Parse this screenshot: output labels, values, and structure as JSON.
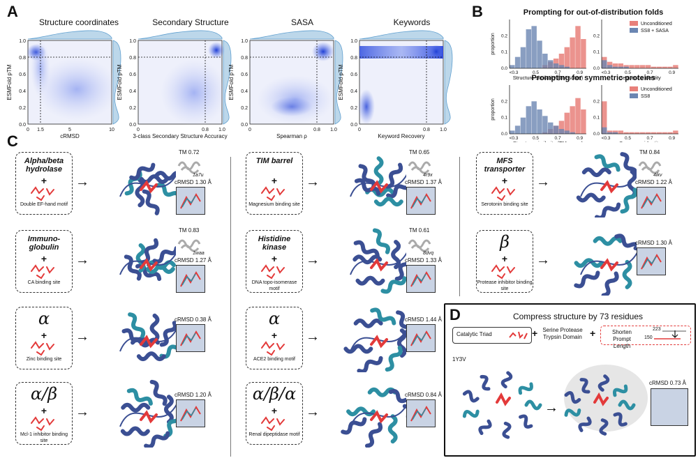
{
  "colors": {
    "blue_dark": "#3b4f93",
    "teal": "#2d8fa3",
    "red": "#e33a3a",
    "density": "#4a63d8",
    "salmon": "#e8807a",
    "slate": "#6b86b2"
  },
  "panelA": {
    "letter": "A",
    "subplots": [
      {
        "title": "Structure coordinates",
        "xlabel": "cRMSD",
        "ylabel": "ESMFold pTM",
        "xticks": [
          "0",
          "1.5",
          "5",
          "10"
        ],
        "yticks": [
          "0.0",
          "0.2",
          "0.4",
          "0.6",
          "0.8",
          "1.0"
        ]
      },
      {
        "title": "Secondary Structure",
        "xlabel": "3-class Secondary Structure Accuracy",
        "ylabel": "ESMFold pTM",
        "xticks": [
          "0",
          "0.8",
          "1.0"
        ],
        "yticks": [
          "0.0",
          "0.2",
          "0.4",
          "0.6",
          "0.8",
          "1.0"
        ]
      },
      {
        "title": "SASA",
        "xlabel": "Spearman ρ",
        "ylabel": "ESMFold pTM",
        "xticks": [
          "0",
          "0.8",
          "1.0"
        ],
        "yticks": [
          "0.0",
          "0.2",
          "0.4",
          "0.6",
          "0.8",
          "1.0"
        ]
      },
      {
        "title": "Keywords",
        "xlabel": "Keyword Recovery",
        "ylabel": "ESMFold pTM",
        "xticks": [
          "0",
          "0.8",
          "1.0"
        ],
        "yticks": [
          "0.0",
          "0.2",
          "0.4",
          "0.6",
          "0.8",
          "1.0"
        ]
      }
    ]
  },
  "panelB": {
    "letter": "B",
    "top_title": "Prompting for out-of-distribution folds",
    "bottom_title": "Prompting for symmetric proteins",
    "ylabel": "proportion",
    "xlabel_left": "Structure similarity (TM-score)",
    "xlabel_right": "Sequence identity",
    "xticks_left": [
      "<0.3",
      "0.5",
      "0.7",
      "0.9"
    ],
    "xticks_right": [
      "<0.3",
      "0.5",
      "0.7",
      "0.9"
    ],
    "yticks": [
      "0.0",
      "0.1",
      "0.2"
    ],
    "legend_top": [
      "Unconditioned",
      "SS8 + SASA"
    ],
    "legend_bottom": [
      "Unconditioned",
      "SS8"
    ]
  },
  "chart_data": [
    {
      "type": "bar",
      "title": "Prompting for out-of-distribution folds",
      "xlabel": "Structure similarity (TM-score)",
      "ylabel": "proportion",
      "ylim": [
        0,
        0.3
      ],
      "x": [
        0.3,
        0.35,
        0.4,
        0.45,
        0.5,
        0.55,
        0.6,
        0.65,
        0.7,
        0.75,
        0.8,
        0.85,
        0.9,
        0.95
      ],
      "series": [
        {
          "name": "Unconditioned",
          "values": [
            0,
            0,
            0,
            0,
            0,
            0,
            0.02,
            0.04,
            0.06,
            0.09,
            0.13,
            0.19,
            0.26,
            0.18
          ]
        },
        {
          "name": "SS8 + SASA",
          "values": [
            0.02,
            0.07,
            0.13,
            0.24,
            0.26,
            0.17,
            0.09,
            0.05,
            0.03,
            0.02,
            0.01,
            0,
            0,
            0
          ]
        }
      ]
    },
    {
      "type": "bar",
      "title": "",
      "xlabel": "Sequence identity",
      "ylabel": "",
      "ylim": [
        0,
        0.3
      ],
      "x": [
        0.3,
        0.35,
        0.4,
        0.45,
        0.5,
        0.55,
        0.6,
        0.65,
        0.7,
        0.75,
        0.8,
        0.85,
        0.9,
        0.95
      ],
      "series": [
        {
          "name": "Unconditioned",
          "values": [
            0.07,
            0.04,
            0.03,
            0.03,
            0.02,
            0.02,
            0.02,
            0.02,
            0.02,
            0.01,
            0.01,
            0.01,
            0.01,
            0.02
          ]
        },
        {
          "name": "SS8 + SASA",
          "values": [
            0.05,
            0.02,
            0.01,
            0.01,
            0.01,
            0,
            0,
            0,
            0,
            0,
            0,
            0,
            0,
            0
          ]
        }
      ]
    },
    {
      "type": "bar",
      "title": "Prompting for symmetric proteins",
      "xlabel": "Structure similarity (TM-score)",
      "ylabel": "proportion",
      "ylim": [
        0,
        0.3
      ],
      "x": [
        0.3,
        0.35,
        0.4,
        0.45,
        0.5,
        0.55,
        0.6,
        0.65,
        0.7,
        0.75,
        0.8,
        0.85,
        0.9,
        0.95
      ],
      "series": [
        {
          "name": "Unconditioned",
          "values": [
            0,
            0,
            0,
            0,
            0,
            0,
            0.01,
            0.03,
            0.05,
            0.08,
            0.13,
            0.17,
            0.22,
            0.15
          ]
        },
        {
          "name": "SS8",
          "values": [
            0.02,
            0.05,
            0.1,
            0.17,
            0.2,
            0.15,
            0.11,
            0.07,
            0.05,
            0.03,
            0.02,
            0.01,
            0,
            0
          ]
        }
      ]
    },
    {
      "type": "bar",
      "title": "",
      "xlabel": "Sequence identity",
      "ylabel": "",
      "ylim": [
        0,
        0.3
      ],
      "x": [
        0.3,
        0.35,
        0.4,
        0.45,
        0.5,
        0.55,
        0.6,
        0.65,
        0.7,
        0.75,
        0.8,
        0.85,
        0.9,
        0.95
      ],
      "series": [
        {
          "name": "Unconditioned",
          "values": [
            0.2,
            0.02,
            0.02,
            0.02,
            0.01,
            0.01,
            0.01,
            0.01,
            0.01,
            0.01,
            0.01,
            0.01,
            0.01,
            0.02
          ]
        },
        {
          "name": "SS8",
          "values": [
            0.04,
            0.01,
            0.01,
            0,
            0,
            0,
            0,
            0,
            0,
            0,
            0,
            0,
            0,
            0
          ]
        }
      ]
    }
  ],
  "panelC": {
    "letter": "C",
    "col1": [
      {
        "name": "Alpha/beta hydrolase",
        "motif": "Double EF-hand motif",
        "tm": "TM 0.72",
        "pdb": "1a7u",
        "crmsd": "cRMSD 1.30 Å"
      },
      {
        "name": "Immuno-globulin",
        "motif": "CA binding site",
        "tm": "TM 0.83",
        "pdb": "1waa",
        "crmsd": "cRMSD 1.27 Å"
      },
      {
        "greek": "α",
        "motif": "Zinc binding site",
        "crmsd": "cRMSD 0.38 Å"
      },
      {
        "greek": "α/β",
        "motif": "Mcl-1 inhibitor binding site",
        "crmsd": "cRMSD 1.20 Å"
      }
    ],
    "col2": [
      {
        "name": "TIM barrel",
        "motif": "Magnesium binding site",
        "tm": "TM 0.65",
        "pdb": "4r9x",
        "crmsd": "cRMSD 1.37 Å"
      },
      {
        "name": "Histidine kinase",
        "motif": "DNA topo-isomerase motif",
        "tm": "TM 0.61",
        "pdb": "8dvq",
        "crmsd": "cRMSD 1.33 Å"
      },
      {
        "greek": "α",
        "motif": "ACE2 binding motif",
        "crmsd": "cRMSD 1.44 Å"
      },
      {
        "greek": "α/β/α",
        "motif": "Renal dipeptidase motif",
        "crmsd": "cRMSD 0.84 Å"
      }
    ],
    "col3": [
      {
        "name": "MFS transporter",
        "motif": "Serotonin binding site",
        "tm": "TM 0.84",
        "pdb": "4ikv",
        "crmsd": "cRMSD 1.22 Å"
      },
      {
        "greek": "β",
        "motif": "Protease inhibitor binding site",
        "crmsd": "cRMSD 1.30 Å"
      }
    ],
    "plus": "+"
  },
  "panelD": {
    "letter": "D",
    "title": "Compress structure by 73 residues",
    "catalytic": "Catalytic Triad",
    "domain": "Serine Protease Trypsin Domain",
    "shorten": "Shorten Prompt Length",
    "len_from": "223",
    "len_to": "150",
    "pdb": "1Y3V",
    "crmsd": "cRMSD 0.73 Å",
    "plus": "+"
  }
}
